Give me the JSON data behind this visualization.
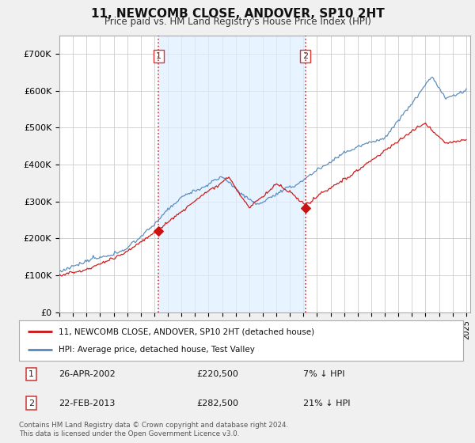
{
  "title": "11, NEWCOMB CLOSE, ANDOVER, SP10 2HT",
  "subtitle": "Price paid vs. HM Land Registry's House Price Index (HPI)",
  "ylabel_ticks": [
    "£0",
    "£100K",
    "£200K",
    "£300K",
    "£400K",
    "£500K",
    "£600K",
    "£700K"
  ],
  "ylim": [
    0,
    750000
  ],
  "xlim_start": 1995.0,
  "xlim_end": 2025.3,
  "transaction1_date": 2002.32,
  "transaction1_price": 220500,
  "transaction2_date": 2013.13,
  "transaction2_price": 282500,
  "vline_color": "#dd3333",
  "red_line_color": "#cc1111",
  "blue_line_color": "#5588bb",
  "shade_color": "#ddeeff",
  "legend_label_red": "11, NEWCOMB CLOSE, ANDOVER, SP10 2HT (detached house)",
  "legend_label_blue": "HPI: Average price, detached house, Test Valley",
  "table_rows": [
    {
      "num": "1",
      "date": "26-APR-2002",
      "price": "£220,500",
      "hpi": "7% ↓ HPI"
    },
    {
      "num": "2",
      "date": "22-FEB-2013",
      "price": "£282,500",
      "hpi": "21% ↓ HPI"
    }
  ],
  "footnote": "Contains HM Land Registry data © Crown copyright and database right 2024.\nThis data is licensed under the Open Government Licence v3.0.",
  "bg_color": "#f0f0f0",
  "plot_bg_color": "#ffffff",
  "grid_color": "#cccccc"
}
